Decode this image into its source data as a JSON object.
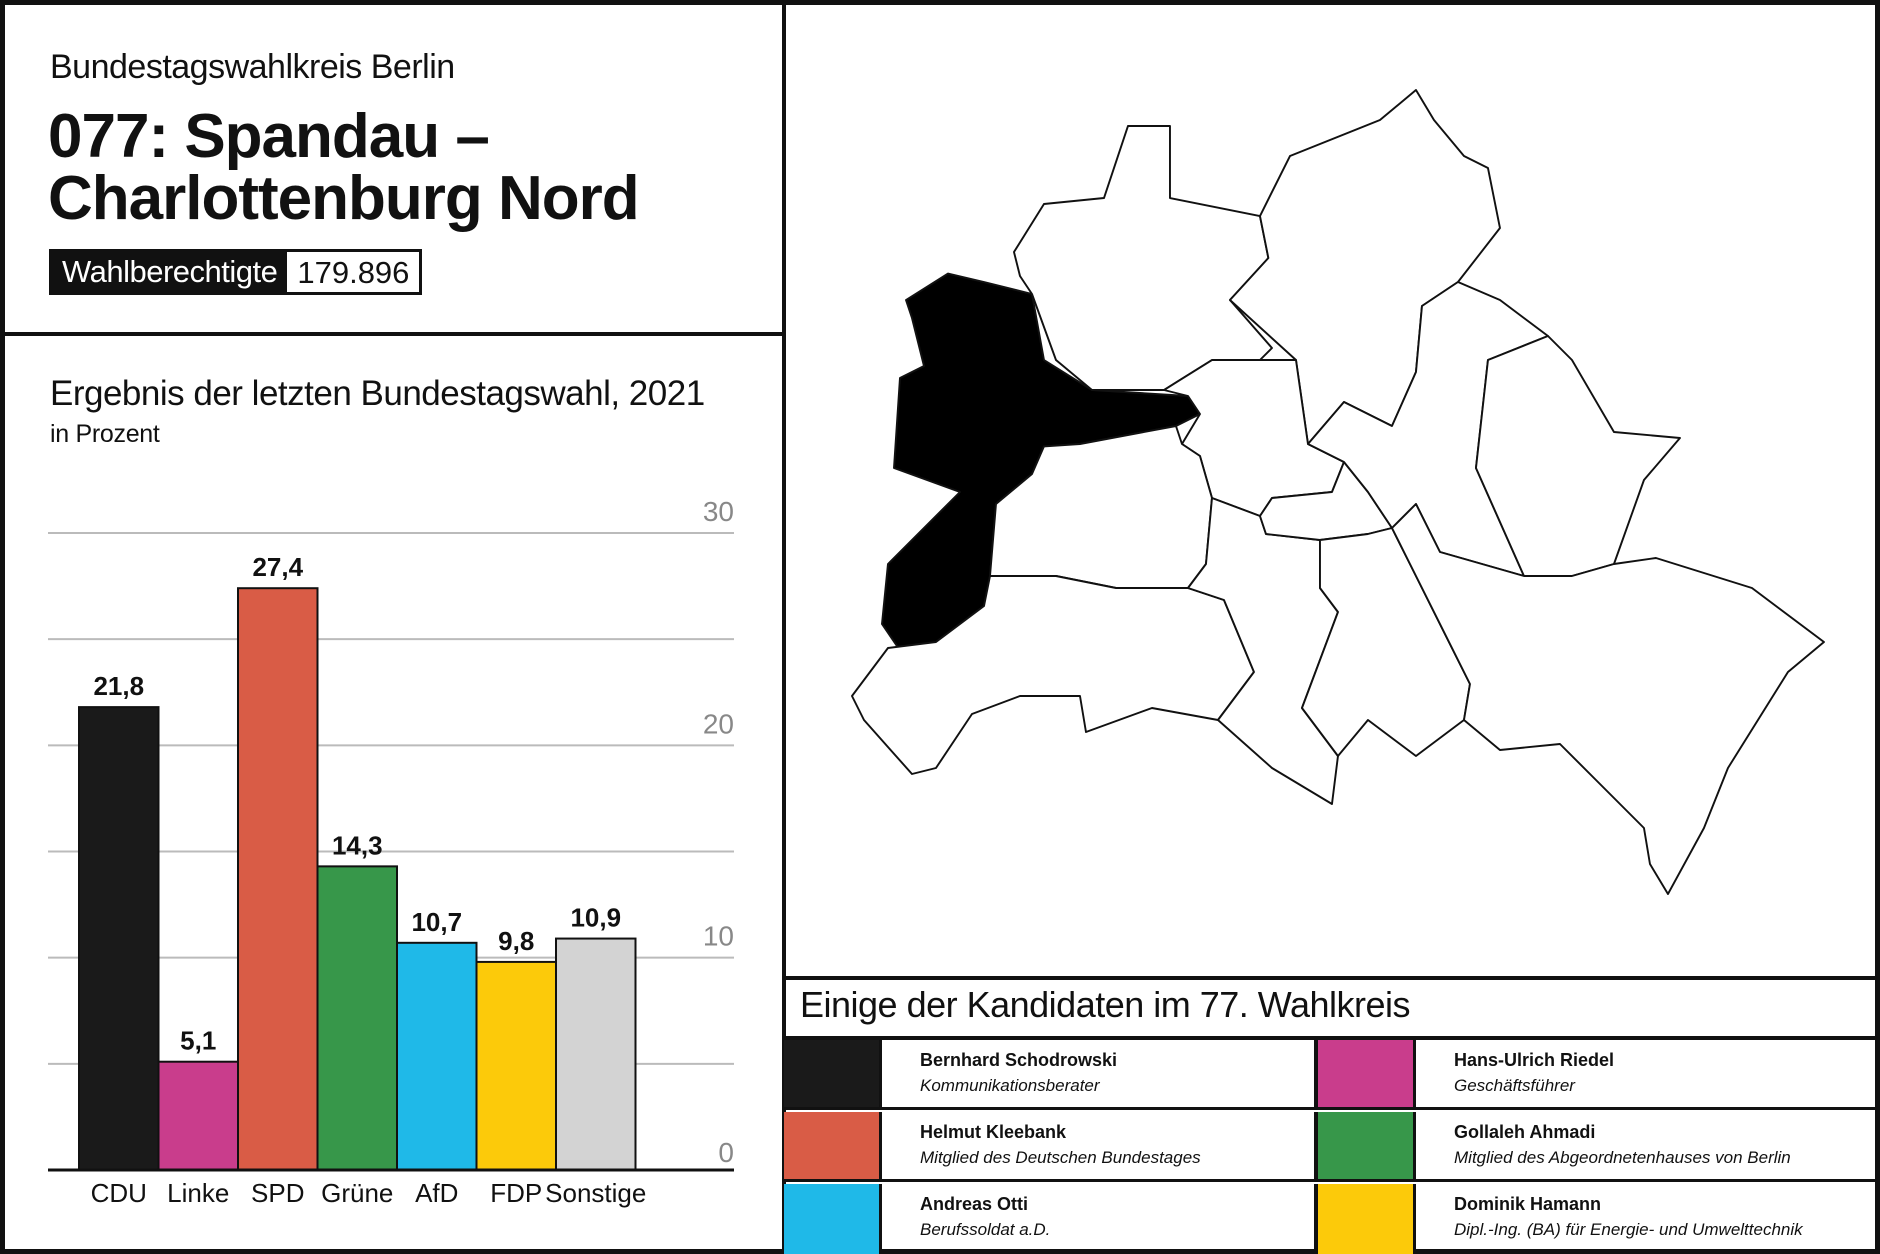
{
  "header": {
    "subtitle": "Bundestagswahlkreis Berlin",
    "title_line1": "077: Spandau –",
    "title_line2": "Charlottenburg Nord",
    "eligible_label": "Wahlberechtigte",
    "eligible_value": "179.896"
  },
  "chart_data": {
    "type": "bar",
    "title": "Ergebnis der letzten Bundestagswahl, 2021",
    "subtitle": "in Prozent",
    "categories": [
      "CDU",
      "Linke",
      "SPD",
      "Grüne",
      "AfD",
      "FDP",
      "Sonstige"
    ],
    "values": [
      21.8,
      5.1,
      27.4,
      14.3,
      10.7,
      9.8,
      10.9
    ],
    "labels": [
      "21,8",
      "5,1",
      "27,4",
      "14,3",
      "10,7",
      "9,8",
      "10,9"
    ],
    "colors": [
      "#1a1a1a",
      "#c93d8c",
      "#d95c46",
      "#37974a",
      "#1fb9e8",
      "#fcca0a",
      "#d3d3d3"
    ],
    "ylim": [
      0,
      30
    ],
    "yticks": [
      "0",
      "10",
      "20",
      "30"
    ],
    "grid": true
  },
  "map": {
    "highlight_color": "#000000",
    "district_highlighted": "Spandau"
  },
  "candidates": {
    "title": "Einige der Kandidaten im 77. Wahlkreis",
    "items": [
      {
        "name": "Bernhard Schodrowski",
        "role": "Kommunikationsberater",
        "color": "#1a1a1a"
      },
      {
        "name": "Hans-Ulrich Riedel",
        "role": "Geschäftsführer",
        "color": "#c93d8c"
      },
      {
        "name": "Helmut Kleebank",
        "role": "Mitglied des Deutschen Bundestages",
        "color": "#d95c46"
      },
      {
        "name": "Gollaleh Ahmadi",
        "role": "Mitglied des Abgeordnetenhauses von Berlin",
        "color": "#37974a"
      },
      {
        "name": "Andreas Otti",
        "role": "Berufssoldat a.D.",
        "color": "#1fb9e8"
      },
      {
        "name": "Dominik Hamann",
        "role": "Dipl.-Ing. (BA) für Energie- und Umwelttechnik",
        "color": "#fcca0a"
      }
    ]
  }
}
